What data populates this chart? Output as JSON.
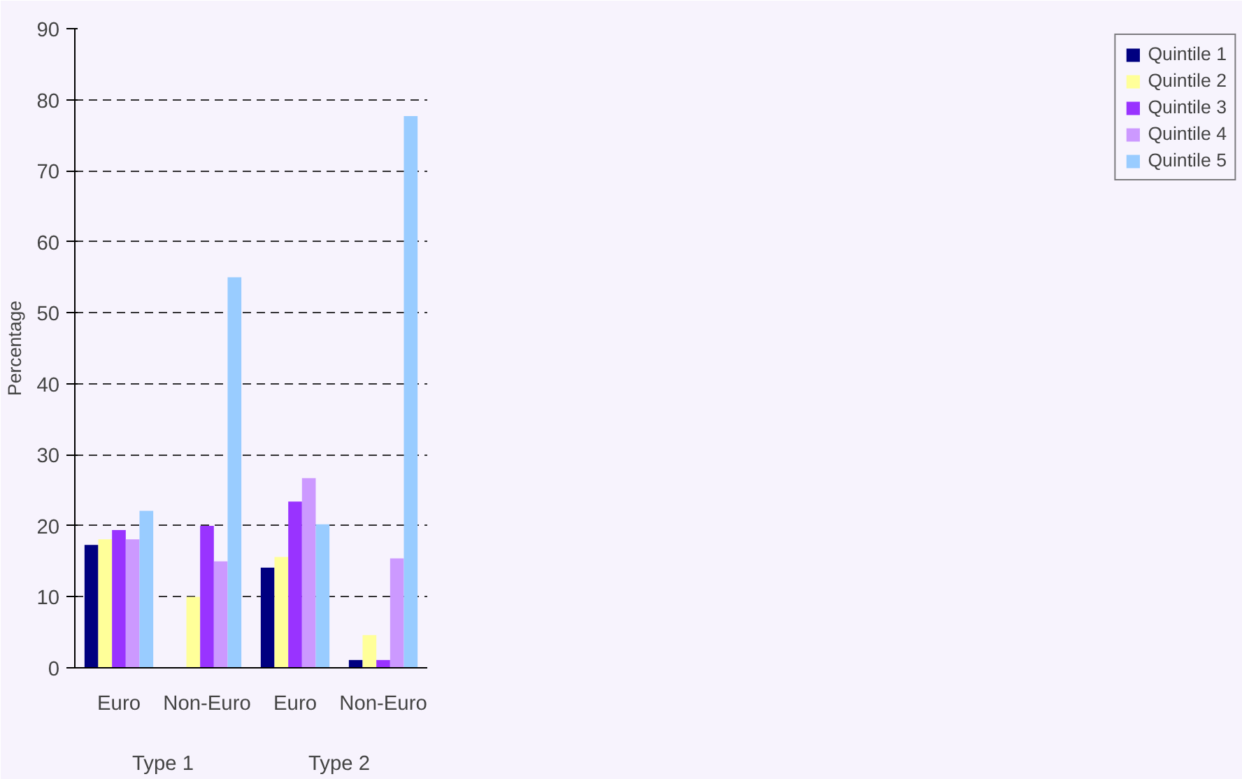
{
  "chart_data": {
    "type": "bar",
    "ylabel": "Percentage",
    "categories": [
      "Euro",
      "Non-Euro",
      "Euro",
      "Non-Euro"
    ],
    "annotations": [
      "Type 1",
      "Type 2"
    ],
    "series": [
      {
        "name": "Quintile 1",
        "color": "#000080",
        "values": [
          17.3,
          null,
          14.1,
          1.1
        ]
      },
      {
        "name": "Quintile 2",
        "color": "#ffff99",
        "values": [
          18.1,
          10,
          15.6,
          4.6
        ]
      },
      {
        "name": "Quintile 3",
        "color": "#9933ff",
        "values": [
          19.4,
          20,
          23.4,
          1.1
        ]
      },
      {
        "name": "Quintile 4",
        "color": "#cc99ff",
        "values": [
          18.1,
          15,
          26.7,
          15.4
        ]
      },
      {
        "name": "Quintile 5",
        "color": "#99ccff",
        "values": [
          22.1,
          55,
          20.2,
          77.7
        ]
      }
    ],
    "ylim": [
      0,
      90
    ],
    "yticks": [
      0,
      10,
      20,
      30,
      40,
      50,
      60,
      70,
      80,
      90
    ],
    "grid": "y",
    "legend": "right"
  }
}
